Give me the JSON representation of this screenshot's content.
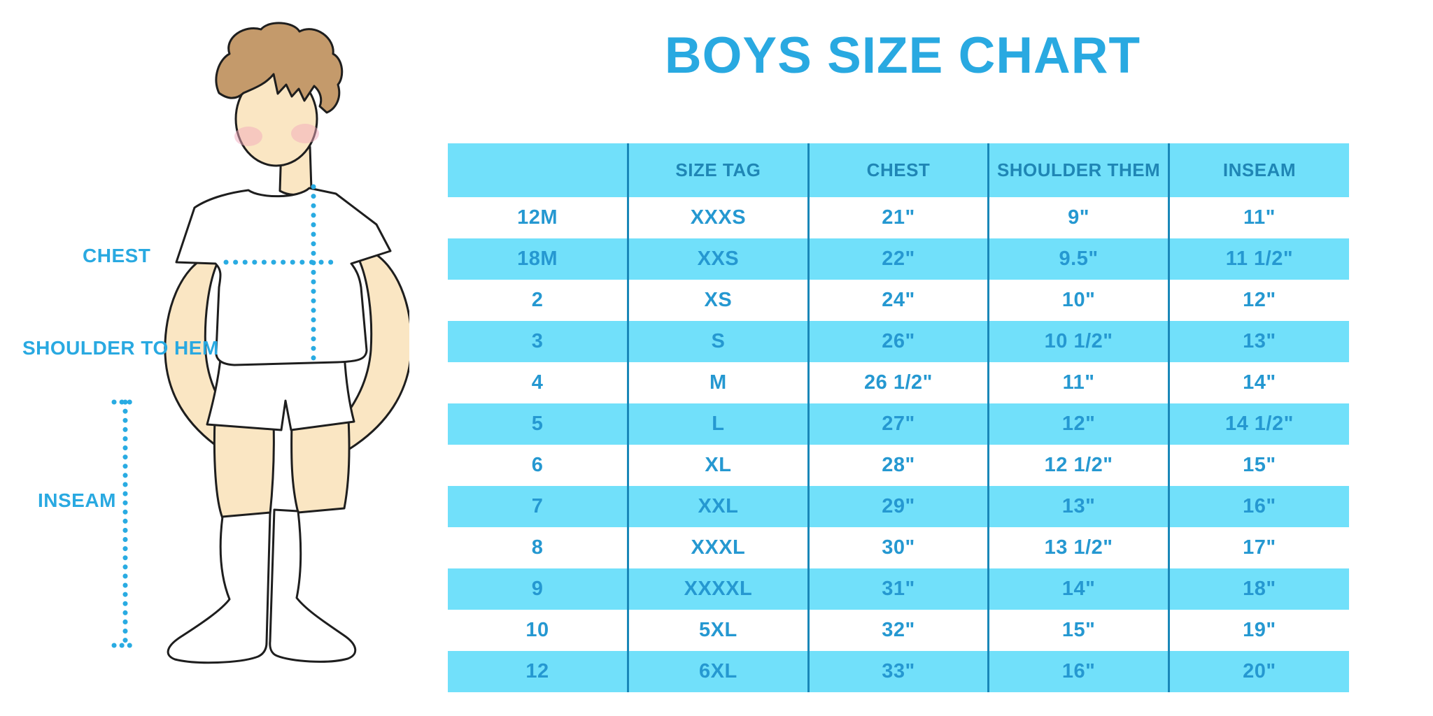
{
  "page_title": "BOYS SIZE CHART",
  "illustration": {
    "labels": {
      "chest": "CHEST",
      "shoulder_to_hem": "SHOULDER TO HEM",
      "inseam": "INSEAM"
    }
  },
  "colors": {
    "accent": "#29A9E1",
    "band": "#71E0FA",
    "headtxt": "#1F86B5",
    "celltxt": "#2598D1",
    "sep": "#1987B8",
    "skin": "#FAE6C3",
    "hair": "#C49A6B",
    "blush": "#F2A9BC",
    "outline": "#1E1E1E"
  },
  "chart_data": {
    "type": "table",
    "title": "BOYS SIZE CHART",
    "columns": [
      "",
      "SIZE TAG",
      "CHEST",
      "SHOULDER THEM",
      "INSEAM"
    ],
    "rows": [
      [
        "12M",
        "XXXS",
        "21\"",
        "9\"",
        "11\""
      ],
      [
        "18M",
        "XXS",
        "22\"",
        "9.5\"",
        "11 1/2\""
      ],
      [
        "2",
        "XS",
        "24\"",
        "10\"",
        "12\""
      ],
      [
        "3",
        "S",
        "26\"",
        "10 1/2\"",
        "13\""
      ],
      [
        "4",
        "M",
        "26 1/2\"",
        "11\"",
        "14\""
      ],
      [
        "5",
        "L",
        "27\"",
        "12\"",
        "14 1/2\""
      ],
      [
        "6",
        "XL",
        "28\"",
        "12 1/2\"",
        "15\""
      ],
      [
        "7",
        "XXL",
        "29\"",
        "13\"",
        "16\""
      ],
      [
        "8",
        "XXXL",
        "30\"",
        "13 1/2\"",
        "17\""
      ],
      [
        "9",
        "XXXXL",
        "31\"",
        "14\"",
        "18\""
      ],
      [
        "10",
        "5XL",
        "32\"",
        "15\"",
        "19\""
      ],
      [
        "12",
        "6XL",
        "33\"",
        "16\"",
        "20\""
      ]
    ],
    "layout": {
      "row_striping": "even rows light blue, odd rows white",
      "column_separators": "dark teal vertical lines, no horizontal lines",
      "grid": "off"
    }
  }
}
